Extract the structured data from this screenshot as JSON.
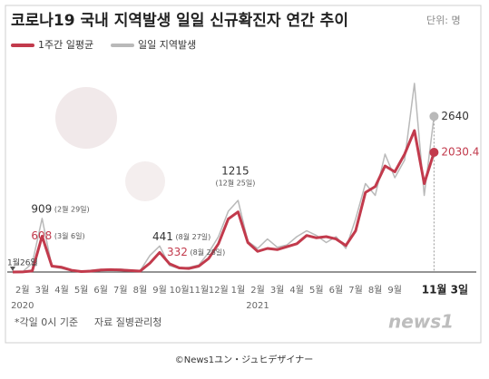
{
  "chart_data": {
    "type": "line",
    "title": "코로나19 국내 지역발생 일일 신규확진자 연간 추이",
    "unit": "단위: 명",
    "categories": [
      null,
      "2월",
      null,
      "3월",
      null,
      "4월",
      null,
      "5월",
      null,
      "6월",
      null,
      "7월",
      null,
      "8월",
      null,
      "9월",
      null,
      "10월",
      null,
      "11월",
      null,
      "12월",
      null,
      "1월",
      null,
      "2월",
      null,
      "3월",
      null,
      "4월",
      null,
      "5월",
      null,
      "6월",
      null,
      "7월",
      null,
      "8월",
      null,
      "9월",
      null,
      null,
      null,
      "11월 3일"
    ],
    "years": [
      "2020",
      "2021"
    ],
    "series": [
      {
        "name": "1주간 일평균",
        "color": "#c23a4c",
        "values": [
          0,
          1,
          20,
          608,
          100,
          80,
          30,
          8,
          15,
          35,
          40,
          35,
          25,
          15,
          150,
          332,
          140,
          70,
          60,
          100,
          230,
          480,
          900,
          1020,
          500,
          350,
          400,
          380,
          430,
          480,
          620,
          580,
          600,
          560,
          450,
          700,
          1350,
          1450,
          1800,
          1700,
          2000,
          2400,
          1500,
          2030.4
        ]
      },
      {
        "name": "일일 지역발생",
        "color": "#b9b9b9",
        "values": [
          0,
          2,
          150,
          909,
          90,
          60,
          20,
          5,
          30,
          45,
          35,
          50,
          30,
          20,
          280,
          441,
          110,
          60,
          80,
          120,
          330,
          600,
          1030,
          1215,
          520,
          400,
          560,
          420,
          460,
          600,
          700,
          620,
          500,
          600,
          400,
          900,
          1500,
          1300,
          2000,
          1600,
          1900,
          3200,
          1300,
          2640
        ]
      }
    ],
    "date_labels": [
      "(2월 29일)",
      "(3월 6일)",
      "(8월 27일)",
      "(8월 28일)",
      "(12월 25일)"
    ],
    "start_label": "1월26일",
    "note": "*각일 0시 기준",
    "source": "자료 질병관리청",
    "logo": "news1",
    "credit": "©News1ユン・ジュヒデザイナー"
  }
}
